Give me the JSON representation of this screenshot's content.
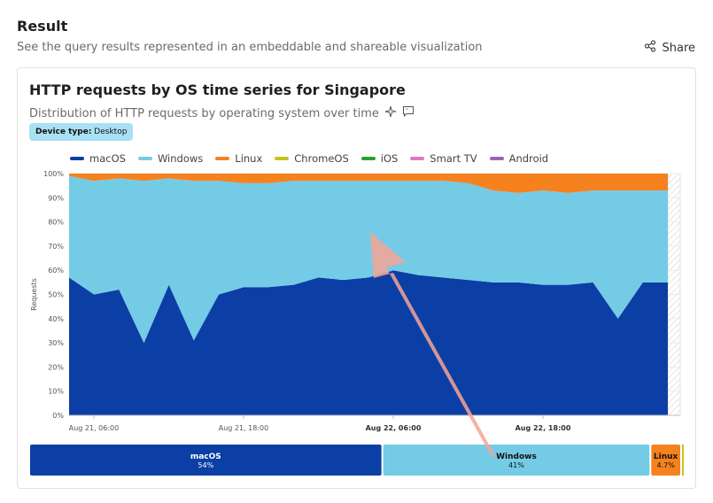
{
  "header": {
    "title": "Result",
    "subtitle": "See the query results represented in an embeddable and shareable visualization",
    "share_label": "Share"
  },
  "card": {
    "title": "HTTP requests by OS time series for Singapore",
    "subtitle": "Distribution of HTTP requests by operating system over time",
    "badge_key": "Device type:",
    "badge_value": "Desktop"
  },
  "colors": {
    "macOS": "#0b3fa6",
    "Windows": "#74cbe6",
    "Linux": "#f5821f",
    "ChromeOS": "#c3c322",
    "iOS": "#2ca02c",
    "Smart TV": "#e377c2",
    "Android": "#9467bd"
  },
  "chart_data": {
    "type": "area",
    "stacked": true,
    "ylabel": "Requests",
    "ylim": [
      0,
      100
    ],
    "yticks": [
      "0%",
      "10%",
      "20%",
      "30%",
      "40%",
      "50%",
      "60%",
      "70%",
      "80%",
      "90%",
      "100%"
    ],
    "xticks": [
      "Aug 21, 06:00",
      "Aug 21, 18:00",
      "Aug 22, 06:00",
      "Aug 22, 18:00"
    ],
    "xticks_bold": [
      false,
      false,
      true,
      true
    ],
    "legend": [
      "macOS",
      "Windows",
      "Linux",
      "ChromeOS",
      "iOS",
      "Smart TV",
      "Android"
    ],
    "x": [
      0,
      2,
      4,
      6,
      8,
      10,
      12,
      14,
      16,
      18,
      20,
      22,
      24,
      26,
      28,
      30,
      32,
      34,
      36,
      38,
      40,
      42,
      44,
      46,
      48
    ],
    "series": [
      {
        "name": "macOS",
        "values": [
          57,
          50,
          52,
          30,
          54,
          31,
          50,
          53,
          53,
          54,
          57,
          56,
          57,
          60,
          58,
          57,
          56,
          55,
          55,
          54,
          54,
          55,
          40,
          55,
          55
        ]
      },
      {
        "name": "Windows",
        "values": [
          42,
          47,
          46,
          67,
          44,
          66,
          47,
          43,
          43,
          43,
          40,
          41,
          40,
          37,
          39,
          40,
          40,
          38,
          37,
          39,
          38,
          38,
          53,
          38,
          38
        ]
      },
      {
        "name": "Linux",
        "values": [
          1,
          3,
          2,
          3,
          2,
          3,
          3,
          4,
          4,
          3,
          3,
          3,
          3,
          3,
          3,
          3,
          4,
          7,
          8,
          7,
          8,
          7,
          7,
          7,
          7
        ]
      }
    ],
    "totals": [
      {
        "name": "macOS",
        "percent_label": "54%",
        "value": 54
      },
      {
        "name": "Windows",
        "percent_label": "41%",
        "value": 41
      },
      {
        "name": "Linux",
        "percent_label": "4.7%",
        "value": 4.7
      }
    ]
  }
}
